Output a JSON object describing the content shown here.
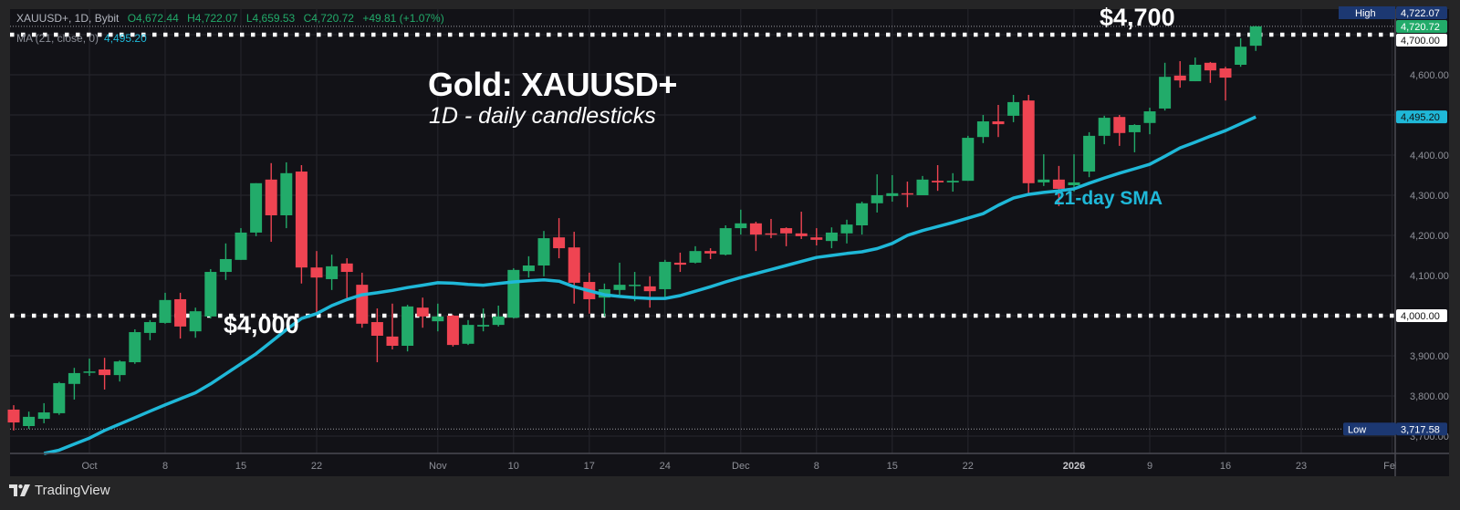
{
  "header": {
    "symbol": "XAUUSD+, 1D, Bybit",
    "open": "O4,672.44",
    "high": "H4,722.07",
    "low": "L4,659.53",
    "close": "C4,720.72",
    "change": "+49.81 (+1.07%)",
    "ma_label": "MA (21, close, 0)",
    "ma_value": "4,495.20"
  },
  "annotations": {
    "title": "Gold: XAUUSD+",
    "subtitle": "1D - daily candlesticks",
    "level_4000": "$4,000",
    "level_4700": "$4,700",
    "sma_label": "21-day SMA"
  },
  "footer": {
    "brand": "TradingView"
  },
  "colors": {
    "up": "#22ab6a",
    "down": "#ef4452",
    "ma": "#1fb8d8",
    "background": "#121217",
    "grid": "#24242b",
    "high_box": "#1c3872",
    "level_line": "#ffffff"
  },
  "price_axis": {
    "ticks": [
      "4,600.00",
      "4,400.00",
      "4,300.00",
      "4,200.00",
      "4,100.00",
      "3,900.00",
      "3,800.00",
      "3,700.00"
    ],
    "tick_values": [
      4600,
      4400,
      4300,
      4200,
      4100,
      3900,
      3800,
      3700
    ],
    "high_label": "High",
    "high_value": "4,722.07",
    "high": 4722.07,
    "last_value": "4,720.72",
    "last": 4720.72,
    "level_4700_value": "4,700.00",
    "ma_value": "4,495.20",
    "ma": 4495.2,
    "level_4000_value": "4,000.00",
    "low_label": "Low",
    "low_value": "3,717.58",
    "low": 3717.58
  },
  "chart_data": {
    "type": "candlestick",
    "title": "Gold: XAUUSD+",
    "subtitle": "1D - daily candlesticks",
    "ylim": [
      3657,
      4810
    ],
    "grid": true,
    "horizontal_lines": [
      4000,
      4700
    ],
    "x_ticks": [
      {
        "label": "Oct",
        "date": "2025-10-01"
      },
      {
        "label": "8",
        "date": "2025-10-08"
      },
      {
        "label": "15",
        "date": "2025-10-15"
      },
      {
        "label": "22",
        "date": "2025-10-22"
      },
      {
        "label": "Nov",
        "date": "2025-11-03"
      },
      {
        "label": "10",
        "date": "2025-11-10"
      },
      {
        "label": "17",
        "date": "2025-11-17"
      },
      {
        "label": "24",
        "date": "2025-11-24"
      },
      {
        "label": "Dec",
        "date": "2025-12-01"
      },
      {
        "label": "8",
        "date": "2025-12-08"
      },
      {
        "label": "15",
        "date": "2025-12-15"
      },
      {
        "label": "22",
        "date": "2025-12-22"
      },
      {
        "label": "2026",
        "date": "2026-01-02"
      },
      {
        "label": "9",
        "date": "2026-01-09"
      },
      {
        "label": "16",
        "date": "2026-01-16"
      },
      {
        "label": "23",
        "date": "2026-01-23"
      },
      {
        "label": "Feb",
        "date": "2026-02-02"
      }
    ],
    "dates": [
      "2025-09-24",
      "2025-09-25",
      "2025-09-26",
      "2025-09-29",
      "2025-09-30",
      "2025-10-01",
      "2025-10-02",
      "2025-10-03",
      "2025-10-06",
      "2025-10-07",
      "2025-10-08",
      "2025-10-09",
      "2025-10-10",
      "2025-10-13",
      "2025-10-14",
      "2025-10-15",
      "2025-10-16",
      "2025-10-17",
      "2025-10-20",
      "2025-10-21",
      "2025-10-22",
      "2025-10-23",
      "2025-10-24",
      "2025-10-27",
      "2025-10-28",
      "2025-10-29",
      "2025-10-30",
      "2025-10-31",
      "2025-11-03",
      "2025-11-04",
      "2025-11-05",
      "2025-11-06",
      "2025-11-07",
      "2025-11-10",
      "2025-11-11",
      "2025-11-12",
      "2025-11-13",
      "2025-11-14",
      "2025-11-17",
      "2025-11-18",
      "2025-11-19",
      "2025-11-20",
      "2025-11-21",
      "2025-11-24",
      "2025-11-25",
      "2025-11-26",
      "2025-11-27",
      "2025-11-28",
      "2025-12-01",
      "2025-12-02",
      "2025-12-03",
      "2025-12-04",
      "2025-12-05",
      "2025-12-08",
      "2025-12-09",
      "2025-12-10",
      "2025-12-11",
      "2025-12-12",
      "2025-12-15",
      "2025-12-16",
      "2025-12-17",
      "2025-12-18",
      "2025-12-19",
      "2025-12-22",
      "2025-12-23",
      "2025-12-24",
      "2025-12-26",
      "2025-12-29",
      "2025-12-30",
      "2025-12-31",
      "2026-01-02",
      "2026-01-05",
      "2026-01-06",
      "2026-01-07",
      "2026-01-08",
      "2026-01-09",
      "2026-01-12",
      "2026-01-13",
      "2026-01-14",
      "2026-01-15",
      "2026-01-16",
      "2026-01-19",
      "2026-01-20"
    ],
    "ohlc": [
      [
        3766,
        3777,
        3714,
        3734
      ],
      [
        3725,
        3761,
        3718,
        3748
      ],
      [
        3743,
        3782,
        3732,
        3759
      ],
      [
        3757,
        3835,
        3753,
        3832
      ],
      [
        3830,
        3870,
        3791,
        3857
      ],
      [
        3859,
        3893,
        3850,
        3861
      ],
      [
        3866,
        3895,
        3816,
        3852
      ],
      [
        3852,
        3889,
        3836,
        3886
      ],
      [
        3884,
        3966,
        3880,
        3959
      ],
      [
        3957,
        3989,
        3939,
        3984
      ],
      [
        3982,
        4057,
        3980,
        4039
      ],
      [
        4041,
        4057,
        3943,
        3973
      ],
      [
        3961,
        4020,
        3945,
        4011
      ],
      [
        3998,
        4116,
        3993,
        4109
      ],
      [
        4109,
        4180,
        4089,
        4141
      ],
      [
        4139,
        4218,
        4139,
        4207
      ],
      [
        4207,
        4330,
        4198,
        4330
      ],
      [
        4339,
        4380,
        4184,
        4250
      ],
      [
        4250,
        4382,
        4218,
        4355
      ],
      [
        4359,
        4375,
        4080,
        4120
      ],
      [
        4120,
        4161,
        4002,
        4095
      ],
      [
        4091,
        4152,
        4064,
        4123
      ],
      [
        4130,
        4143,
        4043,
        4109
      ],
      [
        4077,
        4107,
        3970,
        3980
      ],
      [
        3984,
        4018,
        3884,
        3950
      ],
      [
        3948,
        4030,
        3916,
        3925
      ],
      [
        3925,
        4027,
        3911,
        4023
      ],
      [
        4020,
        4045,
        3970,
        3998
      ],
      [
        3986,
        4030,
        3961,
        3998
      ],
      [
        4000,
        4002,
        3923,
        3927
      ],
      [
        3930,
        3989,
        3927,
        3977
      ],
      [
        3973,
        4018,
        3961,
        3977
      ],
      [
        3977,
        4025,
        3973,
        3998
      ],
      [
        3995,
        4118,
        3993,
        4114
      ],
      [
        4111,
        4148,
        4095,
        4125
      ],
      [
        4125,
        4211,
        4098,
        4193
      ],
      [
        4195,
        4243,
        4143,
        4168
      ],
      [
        4170,
        4209,
        4030,
        4082
      ],
      [
        4084,
        4107,
        4005,
        4041
      ],
      [
        4045,
        4080,
        3998,
        4066
      ],
      [
        4064,
        4132,
        4052,
        4077
      ],
      [
        4075,
        4109,
        4036,
        4077
      ],
      [
        4073,
        4098,
        4020,
        4061
      ],
      [
        4066,
        4139,
        4041,
        4134
      ],
      [
        4132,
        4157,
        4109,
        4127
      ],
      [
        4132,
        4173,
        4130,
        4161
      ],
      [
        4161,
        4168,
        4141,
        4155
      ],
      [
        4152,
        4225,
        4150,
        4218
      ],
      [
        4218,
        4264,
        4202,
        4230
      ],
      [
        4230,
        4234,
        4161,
        4202
      ],
      [
        4205,
        4241,
        4193,
        4202
      ],
      [
        4218,
        4220,
        4173,
        4205
      ],
      [
        4205,
        4259,
        4191,
        4198
      ],
      [
        4195,
        4218,
        4175,
        4189
      ],
      [
        4186,
        4220,
        4168,
        4207
      ],
      [
        4205,
        4239,
        4180,
        4227
      ],
      [
        4225,
        4284,
        4202,
        4280
      ],
      [
        4280,
        4352,
        4257,
        4300
      ],
      [
        4298,
        4350,
        4284,
        4305
      ],
      [
        4305,
        4334,
        4270,
        4302
      ],
      [
        4300,
        4348,
        4300,
        4339
      ],
      [
        4336,
        4375,
        4311,
        4332
      ],
      [
        4332,
        4355,
        4309,
        4336
      ],
      [
        4336,
        4448,
        4336,
        4443
      ],
      [
        4445,
        4500,
        4430,
        4484
      ],
      [
        4484,
        4525,
        4445,
        4477
      ],
      [
        4498,
        4550,
        4482,
        4532
      ],
      [
        4536,
        4550,
        4302,
        4330
      ],
      [
        4332,
        4402,
        4323,
        4339
      ],
      [
        4339,
        4373,
        4273,
        4316
      ],
      [
        4325,
        4402,
        4309,
        4332
      ],
      [
        4359,
        4457,
        4345,
        4448
      ],
      [
        4448,
        4498,
        4427,
        4493
      ],
      [
        4495,
        4500,
        4423,
        4455
      ],
      [
        4457,
        4477,
        4407,
        4475
      ],
      [
        4480,
        4518,
        4452,
        4509
      ],
      [
        4516,
        4630,
        4511,
        4595
      ],
      [
        4598,
        4634,
        4568,
        4586
      ],
      [
        4584,
        4643,
        4584,
        4625
      ],
      [
        4630,
        4632,
        4580,
        4611
      ],
      [
        4616,
        4620,
        4536,
        4593
      ],
      [
        4625,
        4691,
        4620,
        4670
      ],
      [
        4672.44,
        4722.07,
        4659.53,
        4720.72
      ]
    ],
    "ma21": [
      null,
      null,
      3648,
      3665,
      3680,
      3695,
      3714,
      3730,
      3746,
      3762,
      3778,
      3793,
      3808,
      3830,
      3855,
      3880,
      3905,
      3935,
      3965,
      3993,
      4005,
      4025,
      4040,
      4052,
      4057,
      4063,
      4070,
      4076,
      4082,
      4081,
      4078,
      4076,
      4080,
      4084,
      4087,
      4089,
      4086,
      4072,
      4062,
      4052,
      4048,
      4045,
      4043,
      4043,
      4050,
      4061,
      4072,
      4084,
      4095,
      4105,
      4115,
      4125,
      4135,
      4145,
      4150,
      4155,
      4159,
      4167,
      4180,
      4200,
      4212,
      4222,
      4232,
      4243,
      4254,
      4275,
      4293,
      4302,
      4307,
      4311,
      4316,
      4330,
      4343,
      4355,
      4366,
      4377,
      4397,
      4418,
      4432,
      4447,
      4461,
      4478,
      4495.2
    ]
  }
}
